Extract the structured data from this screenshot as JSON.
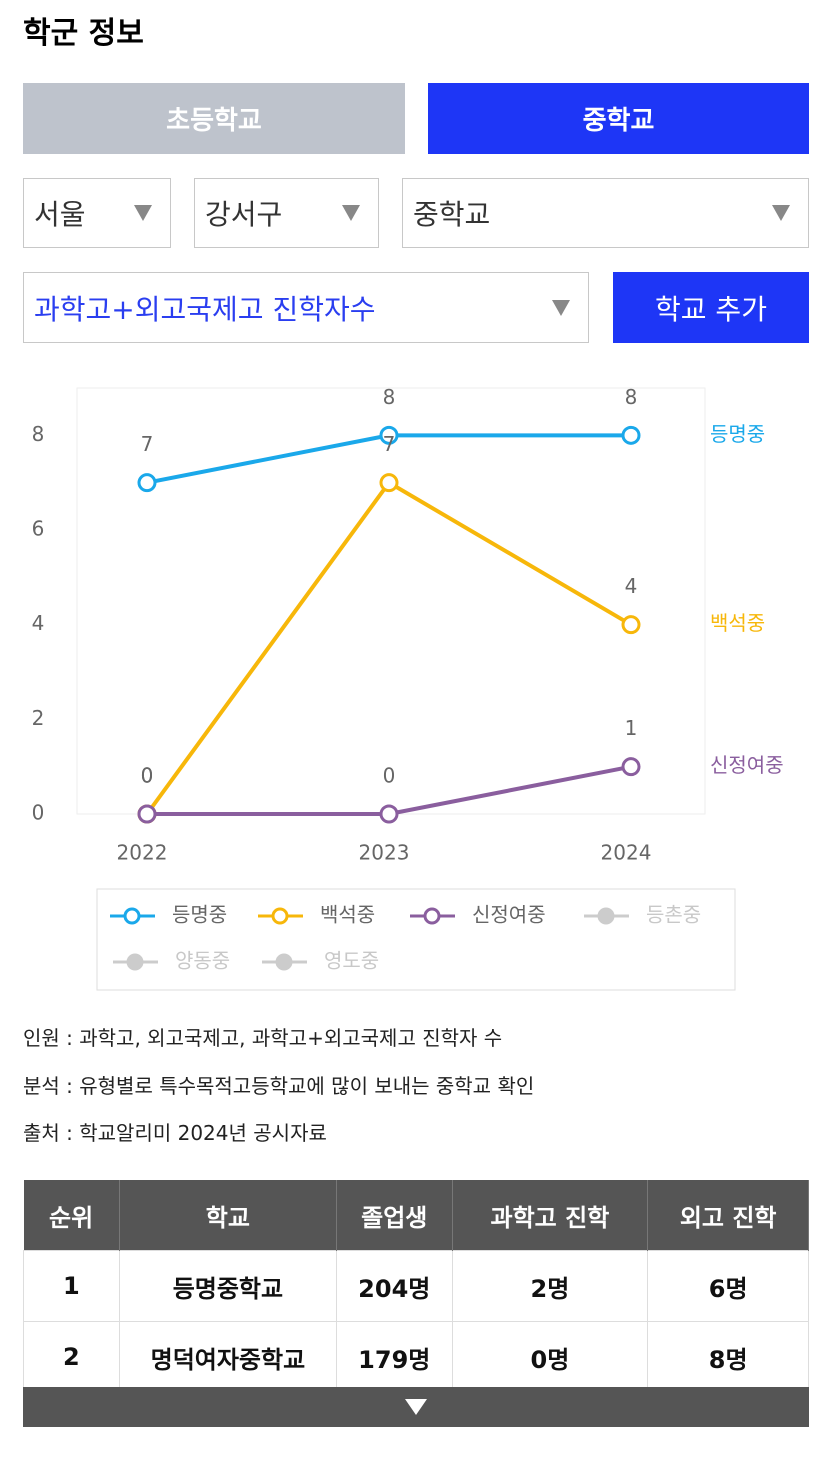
{
  "header": {
    "title": "학군 정보"
  },
  "tabs": [
    "초등학교",
    "중학교"
  ],
  "filters": {
    "region": "서울",
    "district": "강서구",
    "level": "중학교",
    "metric": "과학고+외고국제고 진학자수",
    "add_button": "학교 추가"
  },
  "chart_data": {
    "type": "line",
    "categories": [
      "2022",
      "2023",
      "2024"
    ],
    "series": [
      {
        "name": "등명중",
        "color": "#1aa8ea",
        "values": [
          7,
          8,
          8
        ]
      },
      {
        "name": "백석중",
        "color": "#f7b70a",
        "values": [
          0,
          7,
          4
        ]
      },
      {
        "name": "신정여중",
        "color": "#8a5e9e",
        "values": [
          0,
          0,
          1
        ]
      }
    ],
    "hidden_series": [
      {
        "name": "등촌중",
        "color": "#cccccc"
      },
      {
        "name": "양동중",
        "color": "#cccccc"
      },
      {
        "name": "영도중",
        "color": "#cccccc"
      }
    ],
    "ylim": [
      0,
      9
    ],
    "yticks": [
      0,
      2,
      4,
      6,
      8
    ],
    "grid": false
  },
  "notes": [
    "인원 : 과학고, 외고국제고, 과학고+외고국제고 진학자 수",
    "분석 : 유형별로 특수목적고등학교에 많이 보내는 중학교 확인",
    "출처 : 학교알리미 2024년 공시자료"
  ],
  "table": {
    "headers": [
      "순위",
      "학교",
      "졸업생",
      "과학고 진학",
      "외고 진학"
    ],
    "rows": [
      [
        "1",
        "등명중학교",
        "204명",
        "2명",
        "6명"
      ],
      [
        "2",
        "명덕여자중학교",
        "179명",
        "0명",
        "8명"
      ]
    ]
  }
}
